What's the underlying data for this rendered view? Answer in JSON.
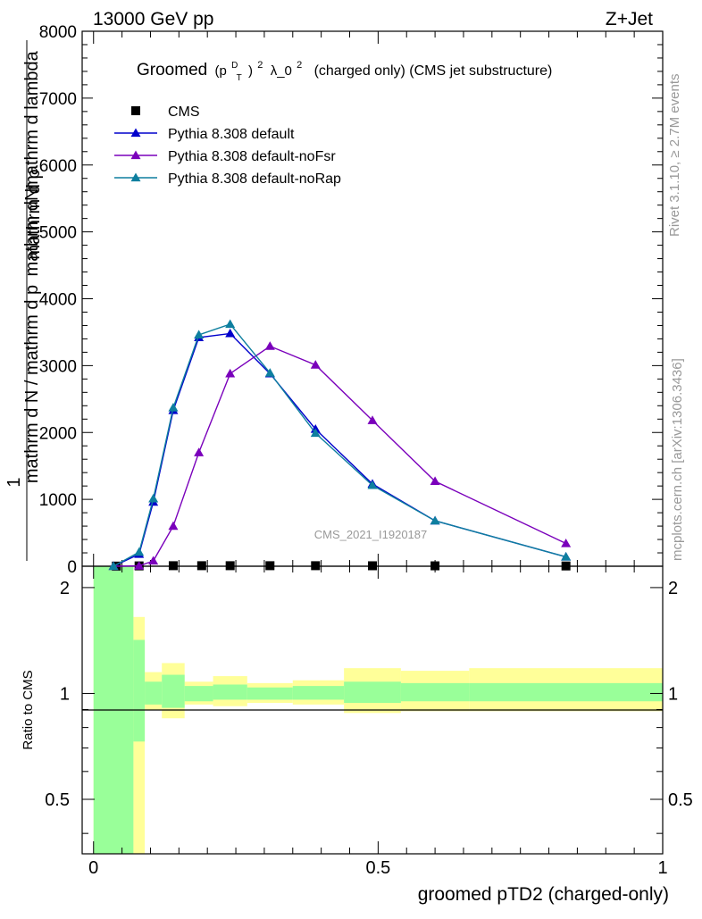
{
  "header": {
    "left": "13000 GeV pp",
    "right": "Z+Jet"
  },
  "side_labels": {
    "rivet": "Rivet 3.1.10, ≥ 2.7M events",
    "mcplots": "mcplots.cern.ch [arXiv:1306.3436]"
  },
  "chart_data": [
    {
      "type": "line",
      "title": "Groomed (p_T^D)^2 λ_0^2 (charged only) (CMS jet substructure)",
      "title_parts": {
        "prefix": "Groomed",
        "p": "(p",
        "sup_d": "D",
        "sub_t": "T",
        "close": ")",
        "sup_2": "2",
        "lambda": "λ_0",
        "sup_2b": "2",
        "suffix": "(charged only) (CMS jet substructure)"
      },
      "ylabel_fraction_numer": "1",
      "ylabel_fraction_denom": "mathrm d N / mathrm d p_T",
      "ylabel_right_numer": "mathrm d^2 N",
      "ylabel_right_denom": "mathrm d p_T mathrm d lambda",
      "ylabel_display": {
        "one": "1",
        "denom": "mathrm d N / mathrm d p",
        "t": "T",
        "numer": "mathrm dN",
        "numer2": "mathrm d p",
        "t2": "T",
        "numer3": "mathrm d lambda",
        "numer4": "mathrm d"
      },
      "watermark": "CMS_2021_I1920187",
      "ylim": [
        0,
        8000
      ],
      "xlim": [
        -0.02,
        1.0
      ],
      "y_ticks": [
        0,
        1000,
        2000,
        3000,
        4000,
        5000,
        6000,
        7000,
        8000
      ],
      "y_tick_labels": [
        "0",
        "1000",
        "2000",
        "3000",
        "4000",
        "5000",
        "6000",
        "7000",
        "8000"
      ],
      "legend_placement": "top-left",
      "series": [
        {
          "name": "CMS",
          "marker": "square",
          "color": "#000000",
          "x": [
            0.04,
            0.08,
            0.14,
            0.19,
            0.24,
            0.31,
            0.39,
            0.49,
            0.6,
            0.83
          ],
          "y": [
            2,
            5,
            8,
            8,
            8,
            8,
            8,
            7,
            6,
            4
          ]
        },
        {
          "name": "Pythia 8.308 default",
          "marker": "triangle",
          "color": "#0000cc",
          "x": [
            0.035,
            0.08,
            0.105,
            0.14,
            0.185,
            0.24,
            0.31,
            0.39,
            0.49,
            0.6,
            0.83
          ],
          "y": [
            0,
            180,
            960,
            2330,
            3420,
            3480,
            2880,
            2050,
            1230,
            680,
            140
          ]
        },
        {
          "name": "Pythia 8.308 default-noFsr",
          "marker": "triangle",
          "color": "#7a00bb",
          "x": [
            0.035,
            0.08,
            0.105,
            0.14,
            0.185,
            0.24,
            0.31,
            0.39,
            0.49,
            0.6,
            0.83
          ],
          "y": [
            0,
            5,
            80,
            600,
            1700,
            2880,
            3290,
            3010,
            2180,
            1270,
            340
          ]
        },
        {
          "name": "Pythia 8.308 default-noRap",
          "marker": "triangle",
          "color": "#0e7f9f",
          "x": [
            0.035,
            0.08,
            0.105,
            0.14,
            0.185,
            0.24,
            0.31,
            0.39,
            0.49,
            0.6,
            0.83
          ],
          "y": [
            0,
            210,
            1010,
            2370,
            3460,
            3620,
            2890,
            1990,
            1210,
            680,
            140
          ]
        }
      ]
    },
    {
      "type": "area",
      "ylabel": "Ratio to CMS",
      "xlabel": "groomed pTD2 (charged-only)",
      "ylim": [
        0.35,
        2.3
      ],
      "log_y": true,
      "xlim": [
        -0.02,
        1.0
      ],
      "y_tick_labels": [
        "0.5",
        "1",
        "2"
      ],
      "y_ticks": [
        0.5,
        1,
        2
      ],
      "x_ticks": [
        0,
        0.5,
        1
      ],
      "x_tick_labels": [
        "0",
        "0.5",
        "1"
      ],
      "bands": [
        {
          "x0": 0.0,
          "x1": 0.07,
          "total_lo": 0.3,
          "total_hi": 3.0,
          "stat_lo": 0.3,
          "stat_hi": 3.0
        },
        {
          "x0": 0.07,
          "x1": 0.09,
          "total_lo": 0.3,
          "total_hi": 1.65,
          "stat_lo": 0.73,
          "stat_hi": 1.42
        },
        {
          "x0": 0.09,
          "x1": 0.12,
          "total_lo": 0.9,
          "total_hi": 1.15,
          "stat_lo": 0.93,
          "stat_hi": 1.08
        },
        {
          "x0": 0.12,
          "x1": 0.16,
          "total_lo": 0.85,
          "total_hi": 1.22,
          "stat_lo": 0.91,
          "stat_hi": 1.13
        },
        {
          "x0": 0.16,
          "x1": 0.21,
          "total_lo": 0.93,
          "total_hi": 1.08,
          "stat_lo": 0.95,
          "stat_hi": 1.05
        },
        {
          "x0": 0.21,
          "x1": 0.27,
          "total_lo": 0.92,
          "total_hi": 1.12,
          "stat_lo": 0.96,
          "stat_hi": 1.06
        },
        {
          "x0": 0.27,
          "x1": 0.35,
          "total_lo": 0.94,
          "total_hi": 1.07,
          "stat_lo": 0.96,
          "stat_hi": 1.04
        },
        {
          "x0": 0.35,
          "x1": 0.44,
          "total_lo": 0.93,
          "total_hi": 1.09,
          "stat_lo": 0.96,
          "stat_hi": 1.05
        },
        {
          "x0": 0.44,
          "x1": 0.54,
          "total_lo": 0.88,
          "total_hi": 1.18,
          "stat_lo": 0.94,
          "stat_hi": 1.08
        },
        {
          "x0": 0.54,
          "x1": 0.66,
          "total_lo": 0.89,
          "total_hi": 1.16,
          "stat_lo": 0.95,
          "stat_hi": 1.07
        },
        {
          "x0": 0.66,
          "x1": 1.0,
          "total_lo": 0.89,
          "total_hi": 1.18,
          "stat_lo": 0.95,
          "stat_hi": 1.07
        }
      ],
      "colors": {
        "total": "#ffff99",
        "stat": "#99ff99"
      }
    }
  ]
}
